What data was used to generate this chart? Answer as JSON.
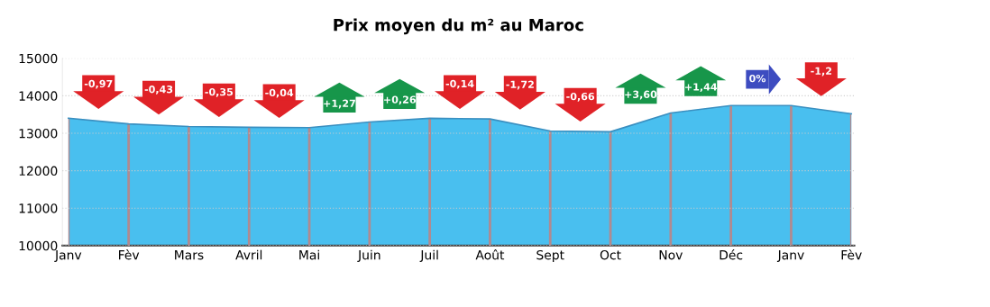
{
  "chart_data": {
    "type": "area",
    "title": "Prix moyen du m² au Maroc",
    "categories": [
      "Janv",
      "Fèv",
      "Mars",
      "Avril",
      "Mai",
      "Juin",
      "Juil",
      "Août",
      "Sept",
      "Oct",
      "Nov",
      "Déc",
      "Janv",
      "Fèv"
    ],
    "series": [
      {
        "color": "#29b4ec",
        "values": [
          13400,
          13250,
          13180,
          13160,
          13150,
          13300,
          13400,
          13380,
          13060,
          13040,
          13540,
          13740,
          13740,
          13520
        ]
      }
    ],
    "ylim": [
      10000,
      15000
    ],
    "yticks": [
      10000,
      11000,
      12000,
      13000,
      14000,
      15000
    ],
    "grid": true,
    "annotations": [
      "-0,97",
      "-0,43",
      "-0,35",
      "-0,04",
      "+1,27",
      "+0,26",
      "-0,14",
      "-1,72",
      "-0,66",
      "+3,60",
      "+1,44",
      "0%",
      "-1,2"
    ]
  }
}
